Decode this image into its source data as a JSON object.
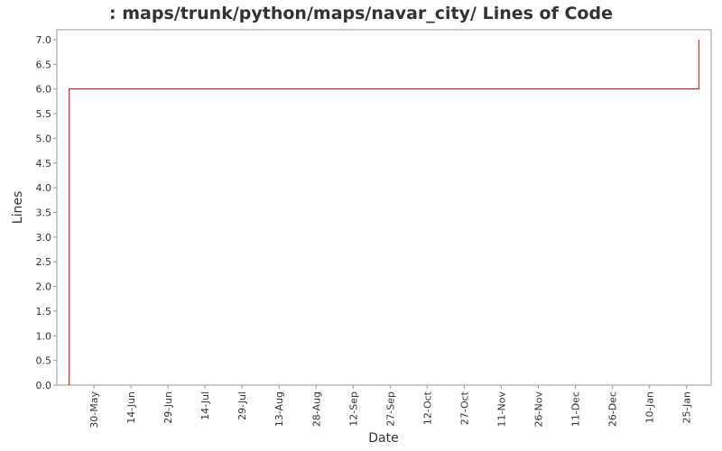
{
  "chart_data": {
    "type": "line",
    "title": ": maps/trunk/python/maps/navar_city/ Lines of Code",
    "x_label": "Date",
    "y_label": "Lines",
    "x": [
      "20-May",
      "20-May",
      "30-Jan",
      "30-Jan"
    ],
    "values": [
      0,
      6,
      6,
      7
    ],
    "color": "#cc0000",
    "xlim": [
      "15-May",
      "4-Feb"
    ],
    "xticks": [
      "30-May",
      "14-Jun",
      "29-Jun",
      "14-Jul",
      "29-Jul",
      "13-Aug",
      "28-Aug",
      "12-Sep",
      "27-Sep",
      "12-Oct",
      "27-Oct",
      "11-Nov",
      "26-Nov",
      "11-Dec",
      "26-Dec",
      "10-Jan",
      "25-Jan"
    ],
    "ylim": [
      0,
      7.2
    ],
    "yticks": [
      {
        "value": 0,
        "label": "0.0"
      },
      0.5,
      {
        "value": 1,
        "label": "1.0"
      },
      1.5,
      {
        "value": 2,
        "label": "2.0"
      },
      2.5,
      {
        "value": 3,
        "label": "3.0"
      },
      3.5,
      {
        "value": 4,
        "label": "4.0"
      },
      4.5,
      {
        "value": 5,
        "label": "5.0"
      },
      5.5,
      {
        "value": 6,
        "label": "6.0"
      },
      6.5,
      {
        "value": 7,
        "label": "7.0"
      }
    ],
    "grid": false
  }
}
